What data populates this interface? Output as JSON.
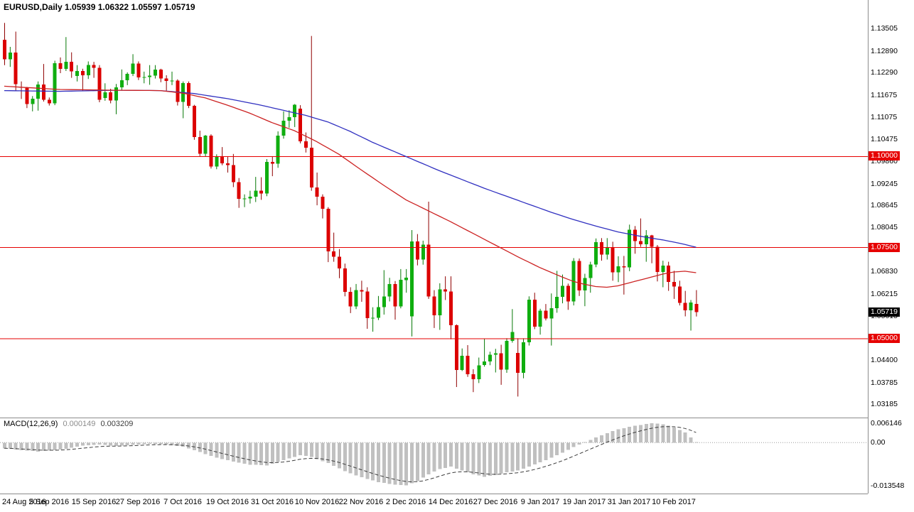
{
  "header": {
    "title": "EURUSD,Daily 1.05939 1.06322 1.05597 1.05719"
  },
  "chart_data": {
    "type": "candlestick",
    "symbol": "EURUSD",
    "timeframe": "Daily",
    "ohlc_display": {
      "open": "1.05939",
      "high": "1.06322",
      "low": "1.05597",
      "close": "1.05719"
    },
    "price_range": [
      1.029,
      1.138
    ],
    "price_axis_labels": [
      "1.13505",
      "1.12890",
      "1.12290",
      "1.11675",
      "1.11075",
      "1.10475",
      "1.09860",
      "1.09245",
      "1.08645",
      "1.08045",
      "1.07430",
      "1.06830",
      "1.06215",
      "1.05615",
      "1.05000",
      "1.04400",
      "1.03785",
      "1.03185"
    ],
    "hlines": [
      {
        "value": 1.1,
        "label": "1.10000"
      },
      {
        "value": 1.075,
        "label": "1.07500"
      },
      {
        "value": 1.05,
        "label": "1.05000"
      }
    ],
    "current_price": {
      "value": 1.05719,
      "label": "1.05719"
    },
    "time_labels": [
      {
        "i": 0,
        "label": "24 Aug 2016"
      },
      {
        "i": 8,
        "label": "5 Sep 2016"
      },
      {
        "i": 16,
        "label": "15 Sep 2016"
      },
      {
        "i": 24,
        "label": "27 Sep 2016"
      },
      {
        "i": 32,
        "label": "7 Oct 2016"
      },
      {
        "i": 40,
        "label": "19 Oct 2016"
      },
      {
        "i": 48,
        "label": "31 Oct 2016"
      },
      {
        "i": 56,
        "label": "10 Nov 2016"
      },
      {
        "i": 64,
        "label": "22 Nov 2016"
      },
      {
        "i": 72,
        "label": "2 Dec 2016"
      },
      {
        "i": 80,
        "label": "14 Dec 2016"
      },
      {
        "i": 88,
        "label": "27 Dec 2016"
      },
      {
        "i": 96,
        "label": "9 Jan 2017"
      },
      {
        "i": 104,
        "label": "19 Jan 2017"
      },
      {
        "i": 112,
        "label": "31 Jan 2017"
      },
      {
        "i": 120,
        "label": "10 Feb 2017"
      }
    ],
    "candles": [
      [
        1.132,
        1.1366,
        1.125,
        1.1266
      ],
      [
        1.1266,
        1.13,
        1.1245,
        1.1284
      ],
      [
        1.1284,
        1.1342,
        1.118,
        1.1198
      ],
      [
        1.119,
        1.1205,
        1.1157,
        1.1188
      ],
      [
        1.1188,
        1.119,
        1.1132,
        1.1143
      ],
      [
        1.1143,
        1.1165,
        1.1123,
        1.1158
      ],
      [
        1.1158,
        1.1205,
        1.1125,
        1.1197
      ],
      [
        1.1197,
        1.1253,
        1.115,
        1.1155
      ],
      [
        1.1155,
        1.1161,
        1.1139,
        1.1145
      ],
      [
        1.1145,
        1.1262,
        1.114,
        1.1255
      ],
      [
        1.1255,
        1.1271,
        1.1228,
        1.124
      ],
      [
        1.124,
        1.1327,
        1.1234,
        1.1259
      ],
      [
        1.1259,
        1.1285,
        1.1215,
        1.1233
      ],
      [
        1.122,
        1.125,
        1.1205,
        1.1234
      ],
      [
        1.1234,
        1.124,
        1.118,
        1.1222
      ],
      [
        1.1222,
        1.126,
        1.1212,
        1.125
      ],
      [
        1.125,
        1.1259,
        1.1215,
        1.1243
      ],
      [
        1.1243,
        1.125,
        1.1148,
        1.1155
      ],
      [
        1.116,
        1.12,
        1.1152,
        1.1175
      ],
      [
        1.1175,
        1.1185,
        1.1145,
        1.1153
      ],
      [
        1.1153,
        1.1198,
        1.1115,
        1.1189
      ],
      [
        1.1189,
        1.1238,
        1.1182,
        1.1208
      ],
      [
        1.1208,
        1.123,
        1.1195,
        1.1226
      ],
      [
        1.1226,
        1.128,
        1.122,
        1.1254
      ],
      [
        1.1254,
        1.126,
        1.1209,
        1.1216
      ],
      [
        1.1216,
        1.1232,
        1.12,
        1.1217
      ],
      [
        1.1217,
        1.125,
        1.1196,
        1.1221
      ],
      [
        1.1221,
        1.125,
        1.1213,
        1.1238
      ],
      [
        1.1238,
        1.124,
        1.1203,
        1.1213
      ],
      [
        1.1213,
        1.1222,
        1.118,
        1.1206
      ],
      [
        1.1206,
        1.1232,
        1.1195,
        1.1207
      ],
      [
        1.1207,
        1.1211,
        1.1139,
        1.1149
      ],
      [
        1.1149,
        1.1205,
        1.1104,
        1.1201
      ],
      [
        1.1201,
        1.1205,
        1.1132,
        1.1138
      ],
      [
        1.1138,
        1.1141,
        1.1045,
        1.1052
      ],
      [
        1.1052,
        1.107,
        1.1,
        1.1007
      ],
      [
        1.1007,
        1.1058,
        1.0998,
        1.1056
      ],
      [
        1.1056,
        1.106,
        1.0966,
        1.0972
      ],
      [
        1.0972,
        1.1005,
        1.0964,
        1.1
      ],
      [
        1.1,
        1.1025,
        1.0975,
        1.098
      ],
      [
        1.098,
        1.0998,
        1.0955,
        1.0975
      ],
      [
        1.0975,
        1.1006,
        1.0915,
        1.0929
      ],
      [
        1.0929,
        1.094,
        1.0858,
        1.0883
      ],
      [
        1.0883,
        1.0895,
        1.086,
        1.0884
      ],
      [
        1.0884,
        1.0905,
        1.087,
        1.0889
      ],
      [
        1.0889,
        1.0943,
        1.0874,
        1.0905
      ],
      [
        1.0905,
        1.0942,
        1.088,
        1.0897
      ],
      [
        1.0897,
        1.0992,
        1.089,
        1.0984
      ],
      [
        1.0984,
        1.1,
        1.0945,
        1.0979
      ],
      [
        1.0979,
        1.1068,
        1.0968,
        1.1056
      ],
      [
        1.1056,
        1.1123,
        1.1048,
        1.1097
      ],
      [
        1.1097,
        1.1126,
        1.1078,
        1.1107
      ],
      [
        1.1107,
        1.1143,
        1.108,
        1.1141
      ],
      [
        1.113,
        1.114,
        1.1035,
        1.1041
      ],
      [
        1.1041,
        1.1065,
        1.101,
        1.1023
      ],
      [
        1.1023,
        1.133,
        1.0905,
        1.0914
      ],
      [
        1.0914,
        1.0955,
        1.0865,
        1.0889
      ],
      [
        1.0889,
        1.0895,
        1.0829,
        1.0855
      ],
      [
        1.0855,
        1.086,
        1.0709,
        1.0738
      ],
      [
        1.0738,
        1.079,
        1.071,
        1.0724
      ],
      [
        1.0724,
        1.0745,
        1.0665,
        1.0692
      ],
      [
        1.0692,
        1.0705,
        1.0615,
        1.0627
      ],
      [
        1.0627,
        1.064,
        1.0569,
        1.0587
      ],
      [
        1.0587,
        1.0649,
        1.058,
        1.0632
      ],
      [
        1.0632,
        1.0658,
        1.06,
        1.0628
      ],
      [
        1.0628,
        1.064,
        1.0526,
        1.0555
      ],
      [
        1.0555,
        1.0585,
        1.0518,
        1.0556
      ],
      [
        1.0556,
        1.0616,
        1.055,
        1.0585
      ],
      [
        1.0585,
        1.0687,
        1.0565,
        1.0615
      ],
      [
        1.0615,
        1.0666,
        1.0601,
        1.0649
      ],
      [
        1.0649,
        1.0657,
        1.0551,
        1.0587
      ],
      [
        1.0587,
        1.069,
        1.0582,
        1.066
      ],
      [
        1.066,
        1.069,
        1.0625,
        1.0666
      ],
      [
        1.056,
        1.0797,
        1.0505,
        1.0766
      ],
      [
        1.0766,
        1.0786,
        1.07,
        1.0716
      ],
      [
        1.0716,
        1.0768,
        1.0702,
        1.0757
      ],
      [
        1.0757,
        1.0875,
        1.0608,
        1.0615
      ],
      [
        1.0615,
        1.0632,
        1.0528,
        1.0563
      ],
      [
        1.0563,
        1.0651,
        1.0523,
        1.0634
      ],
      [
        1.0634,
        1.067,
        1.0605,
        1.0628
      ],
      [
        1.0628,
        1.067,
        1.0497,
        1.0536
      ],
      [
        1.0536,
        1.0538,
        1.0366,
        1.0413
      ],
      [
        1.0413,
        1.0472,
        1.041,
        1.0452
      ],
      [
        1.0452,
        1.0481,
        1.0394,
        1.0401
      ],
      [
        1.0401,
        1.0415,
        1.0352,
        1.0388
      ],
      [
        1.0388,
        1.0447,
        1.0377,
        1.0426
      ],
      [
        1.0426,
        1.0498,
        1.0422,
        1.0436
      ],
      [
        1.0436,
        1.0463,
        1.0426,
        1.0455
      ],
      [
        1.0455,
        1.0471,
        1.0406,
        1.0459
      ],
      [
        1.0459,
        1.0482,
        1.0372,
        1.0414
      ],
      [
        1.0414,
        1.05,
        1.0405,
        1.0493
      ],
      [
        1.0493,
        1.058,
        1.0488,
        1.0517
      ],
      [
        1.046,
        1.05,
        1.034,
        1.0405
      ],
      [
        1.0405,
        1.05,
        1.039,
        1.0489
      ],
      [
        1.0489,
        1.0615,
        1.048,
        1.0606
      ],
      [
        1.0606,
        1.0625,
        1.0525,
        1.0532
      ],
      [
        1.0532,
        1.0581,
        1.051,
        1.0576
      ],
      [
        1.0576,
        1.0594,
        1.0549,
        1.0554
      ],
      [
        1.0554,
        1.0623,
        1.048,
        1.0582
      ],
      [
        1.0582,
        1.0685,
        1.057,
        1.0614
      ],
      [
        1.0614,
        1.0675,
        1.0596,
        1.0644
      ],
      [
        1.0644,
        1.065,
        1.0578,
        1.0601
      ],
      [
        1.0601,
        1.072,
        1.059,
        1.0712
      ],
      [
        1.0712,
        1.0719,
        1.0616,
        1.0631
      ],
      [
        1.0631,
        1.0677,
        1.0588,
        1.0665
      ],
      [
        1.0665,
        1.071,
        1.0625,
        1.0702
      ],
      [
        1.0702,
        1.0774,
        1.0695,
        1.0764
      ],
      [
        1.0764,
        1.0775,
        1.0713,
        1.073
      ],
      [
        1.073,
        1.0775,
        1.0716,
        1.0748
      ],
      [
        1.0748,
        1.0765,
        1.0658,
        1.0681
      ],
      [
        1.0681,
        1.0725,
        1.0654,
        1.0698
      ],
      [
        1.0698,
        1.0726,
        1.062,
        1.0695
      ],
      [
        1.0695,
        1.0812,
        1.0684,
        1.0798
      ],
      [
        1.0798,
        1.0808,
        1.0732,
        1.0767
      ],
      [
        1.0767,
        1.0829,
        1.0751,
        1.0758
      ],
      [
        1.0758,
        1.0797,
        1.071,
        1.0782
      ],
      [
        1.0782,
        1.0784,
        1.0706,
        1.0751
      ],
      [
        1.0751,
        1.0756,
        1.0656,
        1.0682
      ],
      [
        1.0682,
        1.0713,
        1.064,
        1.0699
      ],
      [
        1.0699,
        1.071,
        1.063,
        1.0655
      ],
      [
        1.0655,
        1.0685,
        1.0608,
        1.0642
      ],
      [
        1.0642,
        1.0658,
        1.059,
        1.0597
      ],
      [
        1.0597,
        1.063,
        1.056,
        1.0577
      ],
      [
        1.0577,
        1.0605,
        1.0521,
        1.0598
      ],
      [
        1.05939,
        1.06322,
        1.05597,
        1.05719
      ]
    ],
    "ma_slow_blue": [
      [
        0,
        1.118
      ],
      [
        10,
        1.1178
      ],
      [
        20,
        1.1181
      ],
      [
        28,
        1.118
      ],
      [
        34,
        1.1172
      ],
      [
        40,
        1.1158
      ],
      [
        46,
        1.114
      ],
      [
        50,
        1.1126
      ],
      [
        54,
        1.1112
      ],
      [
        58,
        1.1094
      ],
      [
        62,
        1.1068
      ],
      [
        66,
        1.1038
      ],
      [
        70,
        1.1012
      ],
      [
        74,
        1.0986
      ],
      [
        78,
        1.096
      ],
      [
        82,
        1.0936
      ],
      [
        86,
        1.0912
      ],
      [
        90,
        1.089
      ],
      [
        94,
        1.0868
      ],
      [
        98,
        1.0846
      ],
      [
        102,
        1.0826
      ],
      [
        106,
        1.0808
      ],
      [
        110,
        1.0792
      ],
      [
        114,
        1.078
      ],
      [
        118,
        1.077
      ],
      [
        121,
        1.0761
      ],
      [
        124,
        1.075
      ]
    ],
    "ma_fast_red": [
      [
        0,
        1.1192
      ],
      [
        10,
        1.1183
      ],
      [
        20,
        1.1181
      ],
      [
        28,
        1.118
      ],
      [
        32,
        1.1173
      ],
      [
        36,
        1.116
      ],
      [
        40,
        1.114
      ],
      [
        44,
        1.1118
      ],
      [
        48,
        1.1092
      ],
      [
        52,
        1.107
      ],
      [
        56,
        1.104
      ],
      [
        60,
        1.1005
      ],
      [
        64,
        1.0962
      ],
      [
        68,
        1.092
      ],
      [
        72,
        1.088
      ],
      [
        76,
        1.085
      ],
      [
        80,
        1.082
      ],
      [
        84,
        1.0788
      ],
      [
        88,
        1.0756
      ],
      [
        92,
        1.0724
      ],
      [
        96,
        1.0694
      ],
      [
        100,
        1.0668
      ],
      [
        102,
        1.0656
      ],
      [
        104,
        1.0648
      ],
      [
        106,
        1.0642
      ],
      [
        108,
        1.064
      ],
      [
        110,
        1.0644
      ],
      [
        112,
        1.0652
      ],
      [
        114,
        1.066
      ],
      [
        116,
        1.0668
      ],
      [
        118,
        1.0676
      ],
      [
        120,
        1.0682
      ],
      [
        122,
        1.0684
      ],
      [
        124,
        1.068
      ]
    ],
    "macd": {
      "name": "MACD(12,26,9)",
      "value_macd": "0.000149",
      "value_signal": "0.003209",
      "range": [
        -0.015,
        0.0068
      ],
      "axis_labels": [
        {
          "label": "0.006146",
          "value": 0.006146
        },
        {
          "label": "0.00",
          "value": 0
        },
        {
          "label": "-0.013548",
          "value": -0.013548
        }
      ],
      "macd_points": [
        [
          0,
          -0.0018
        ],
        [
          3,
          -0.0024
        ],
        [
          6,
          -0.0028
        ],
        [
          10,
          -0.0022
        ],
        [
          14,
          -0.001
        ],
        [
          17,
          -0.0006
        ],
        [
          20,
          -0.0011
        ],
        [
          23,
          -0.0007
        ],
        [
          26,
          -0.0004
        ],
        [
          29,
          -0.0006
        ],
        [
          32,
          -0.0013
        ],
        [
          35,
          -0.003
        ],
        [
          38,
          -0.0048
        ],
        [
          41,
          -0.006
        ],
        [
          44,
          -0.007
        ],
        [
          47,
          -0.0072
        ],
        [
          50,
          -0.0055
        ],
        [
          53,
          -0.004
        ],
        [
          55,
          -0.0045
        ],
        [
          58,
          -0.0065
        ],
        [
          61,
          -0.009
        ],
        [
          64,
          -0.011
        ],
        [
          67,
          -0.0125
        ],
        [
          70,
          -0.0133
        ],
        [
          72,
          -0.013548
        ],
        [
          74,
          -0.0122
        ],
        [
          76,
          -0.01
        ],
        [
          78,
          -0.0084
        ],
        [
          80,
          -0.0076
        ],
        [
          82,
          -0.0088
        ],
        [
          84,
          -0.01
        ],
        [
          86,
          -0.0108
        ],
        [
          88,
          -0.0103
        ],
        [
          90,
          -0.0094
        ],
        [
          92,
          -0.0088
        ],
        [
          94,
          -0.0076
        ],
        [
          96,
          -0.0062
        ],
        [
          98,
          -0.0048
        ],
        [
          100,
          -0.0032
        ],
        [
          102,
          -0.0014
        ],
        [
          104,
          0.0002
        ],
        [
          106,
          0.0016
        ],
        [
          108,
          0.003
        ],
        [
          110,
          0.0042
        ],
        [
          112,
          0.005
        ],
        [
          114,
          0.0056
        ],
        [
          116,
          0.006146
        ],
        [
          118,
          0.0058
        ],
        [
          120,
          0.0048
        ],
        [
          122,
          0.0032
        ],
        [
          124,
          0.000149
        ]
      ]
    },
    "colors": {
      "bull": "#0fae0f",
      "bear": "#dc0000",
      "bull_wick": "#067806",
      "bear_wick": "#8f0000",
      "ma_slow": "#3030c0",
      "ma_fast": "#cc2222",
      "hline": "#e60000",
      "hist": "#c0c0c0",
      "signal": "#3c3c3c",
      "zero_line": "#9a9a9a",
      "badge_current_bg": "#000000",
      "badge_text": "#ffffff"
    }
  }
}
